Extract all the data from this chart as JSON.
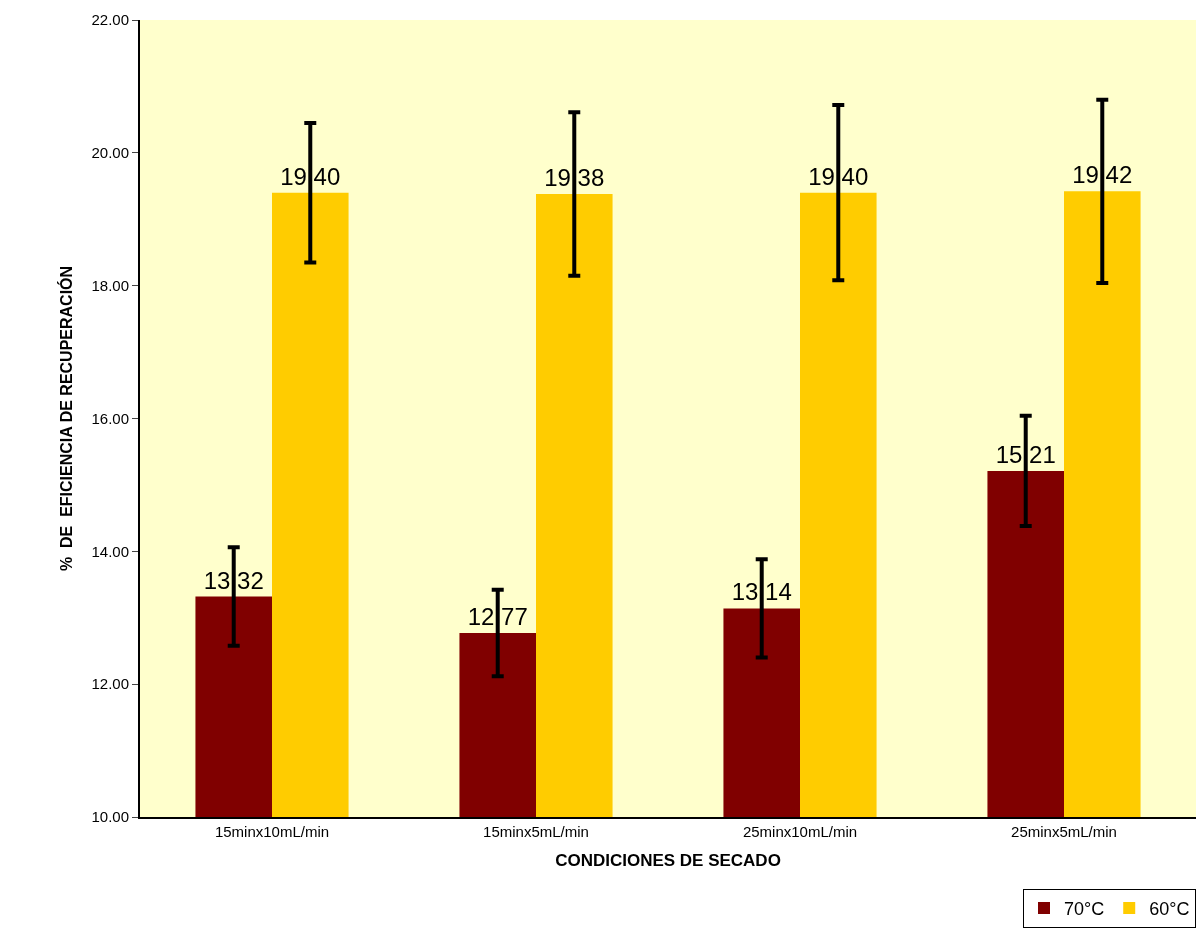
{
  "chart_data": {
    "type": "bar",
    "xlabel": "CONDICIONES DE SECADO",
    "ylabel": "%  DE  EFICIENCIA DE RECUPERACIÓN",
    "categories": [
      "15minx10mL/min",
      "15minx5mL/min",
      "25minx10mL/min",
      "25minx5mL/min"
    ],
    "series": [
      {
        "name": "70°C",
        "color": "#800000",
        "values": [
          13.32,
          12.77,
          13.14,
          15.21
        ],
        "errors": [
          0.74,
          0.65,
          0.74,
          0.83
        ]
      },
      {
        "name": "60°C",
        "color": "#ffcc00",
        "values": [
          19.4,
          19.38,
          19.4,
          19.42
        ],
        "errors": [
          1.05,
          1.23,
          1.32,
          1.38
        ]
      }
    ],
    "value_labels": [
      [
        "13.32",
        "12.77",
        "13.14",
        "15.21"
      ],
      [
        "19.40",
        "19.38",
        "19.40",
        "19.42"
      ]
    ],
    "ylim": [
      10,
      22
    ],
    "yticks": [
      {
        "value": 10,
        "label": "10.00"
      },
      {
        "value": 12,
        "label": "12.00"
      },
      {
        "value": 14,
        "label": "14.00"
      },
      {
        "value": 16,
        "label": "16.00"
      },
      {
        "value": 18,
        "label": "18.00"
      },
      {
        "value": 20,
        "label": "20.00"
      },
      {
        "value": 22,
        "label": "22.00"
      }
    ],
    "grid": false,
    "legend": "bottom right"
  }
}
